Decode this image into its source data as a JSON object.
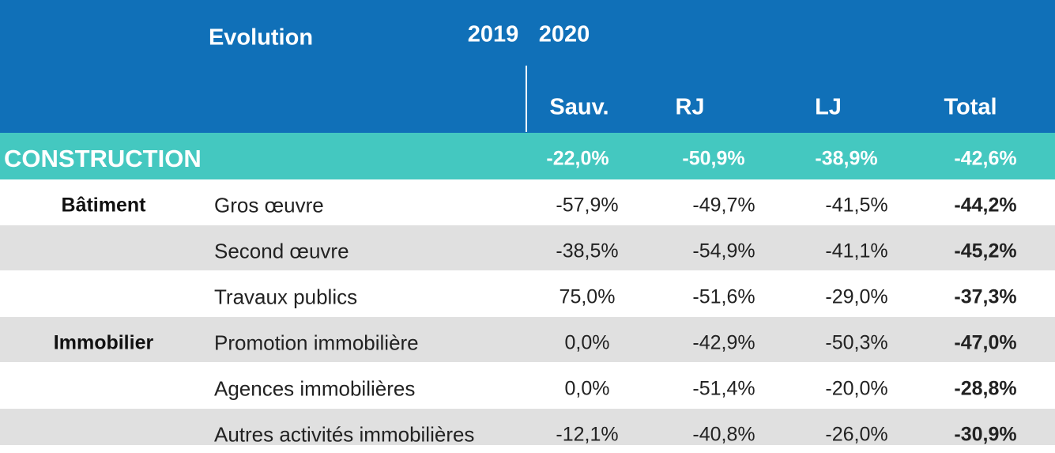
{
  "header": {
    "title": "Evolution",
    "years": [
      "2019",
      "2020"
    ],
    "columns": [
      "Sauv.",
      "RJ",
      "LJ",
      "Total"
    ]
  },
  "sector": {
    "label": "CONSTRUCTION",
    "values": [
      "-22,0%",
      "-50,9%",
      "-38,9%",
      "-42,6%"
    ]
  },
  "rows": [
    {
      "group": "Bâtiment",
      "label": "Gros œuvre",
      "values": [
        "-57,9%",
        "-49,7%",
        "-41,5%",
        "-44,2%"
      ]
    },
    {
      "group": null,
      "label": "Second œuvre",
      "values": [
        "-38,5%",
        "-54,9%",
        "-41,1%",
        "-45,2%"
      ]
    },
    {
      "group": null,
      "label": "Travaux publics",
      "values": [
        "75,0%",
        "-51,6%",
        "-29,0%",
        "-37,3%"
      ]
    },
    {
      "group": "Immobilier",
      "label": "Promotion immobilière",
      "values": [
        "0,0%",
        "-42,9%",
        "-50,3%",
        "-47,0%"
      ]
    },
    {
      "group": null,
      "label": "Agences immobilières",
      "values": [
        "0,0%",
        "-51,4%",
        "-20,0%",
        "-28,8%"
      ]
    },
    {
      "group": null,
      "label": "Autres activités immobilières",
      "values": [
        "-12,1%",
        "-40,8%",
        "-26,0%",
        "-30,9%"
      ]
    }
  ]
}
